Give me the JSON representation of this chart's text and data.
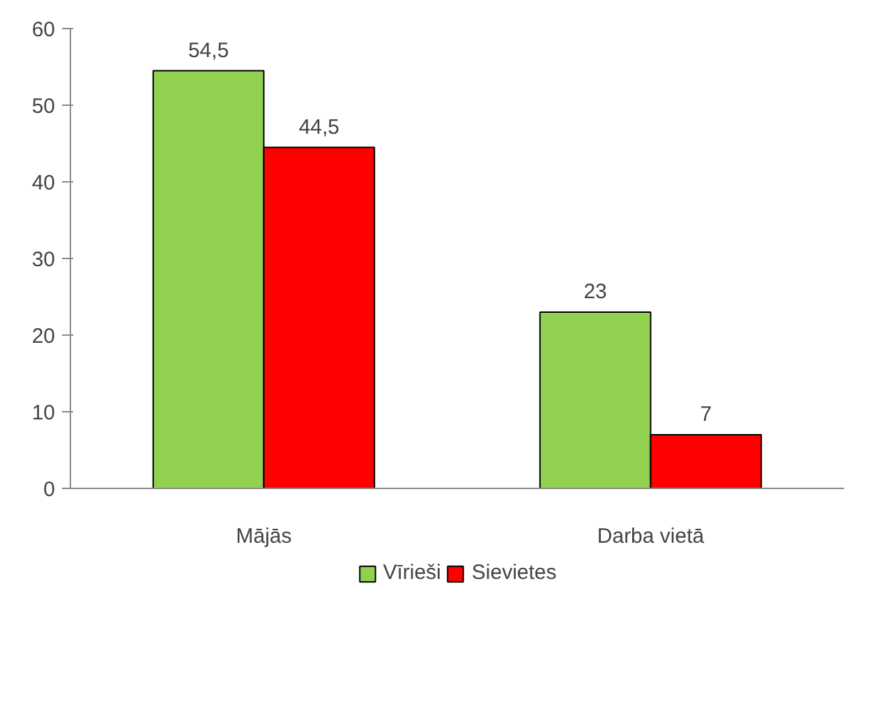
{
  "chart_data": {
    "type": "bar",
    "categories": [
      "Mājās",
      "Darba vietā"
    ],
    "series": [
      {
        "name": "Vīrieši",
        "color": "#92d050",
        "values": [
          54.5,
          23
        ],
        "value_labels": [
          "54,5",
          "23"
        ]
      },
      {
        "name": "Sievietes",
        "color": "#ff0000",
        "values": [
          44.5,
          7
        ],
        "value_labels": [
          "44,5",
          "7"
        ]
      }
    ],
    "ylim": [
      0,
      60
    ],
    "yticks": [
      0,
      10,
      20,
      30,
      40,
      50,
      60
    ],
    "grid": false,
    "legend": "bottom"
  }
}
